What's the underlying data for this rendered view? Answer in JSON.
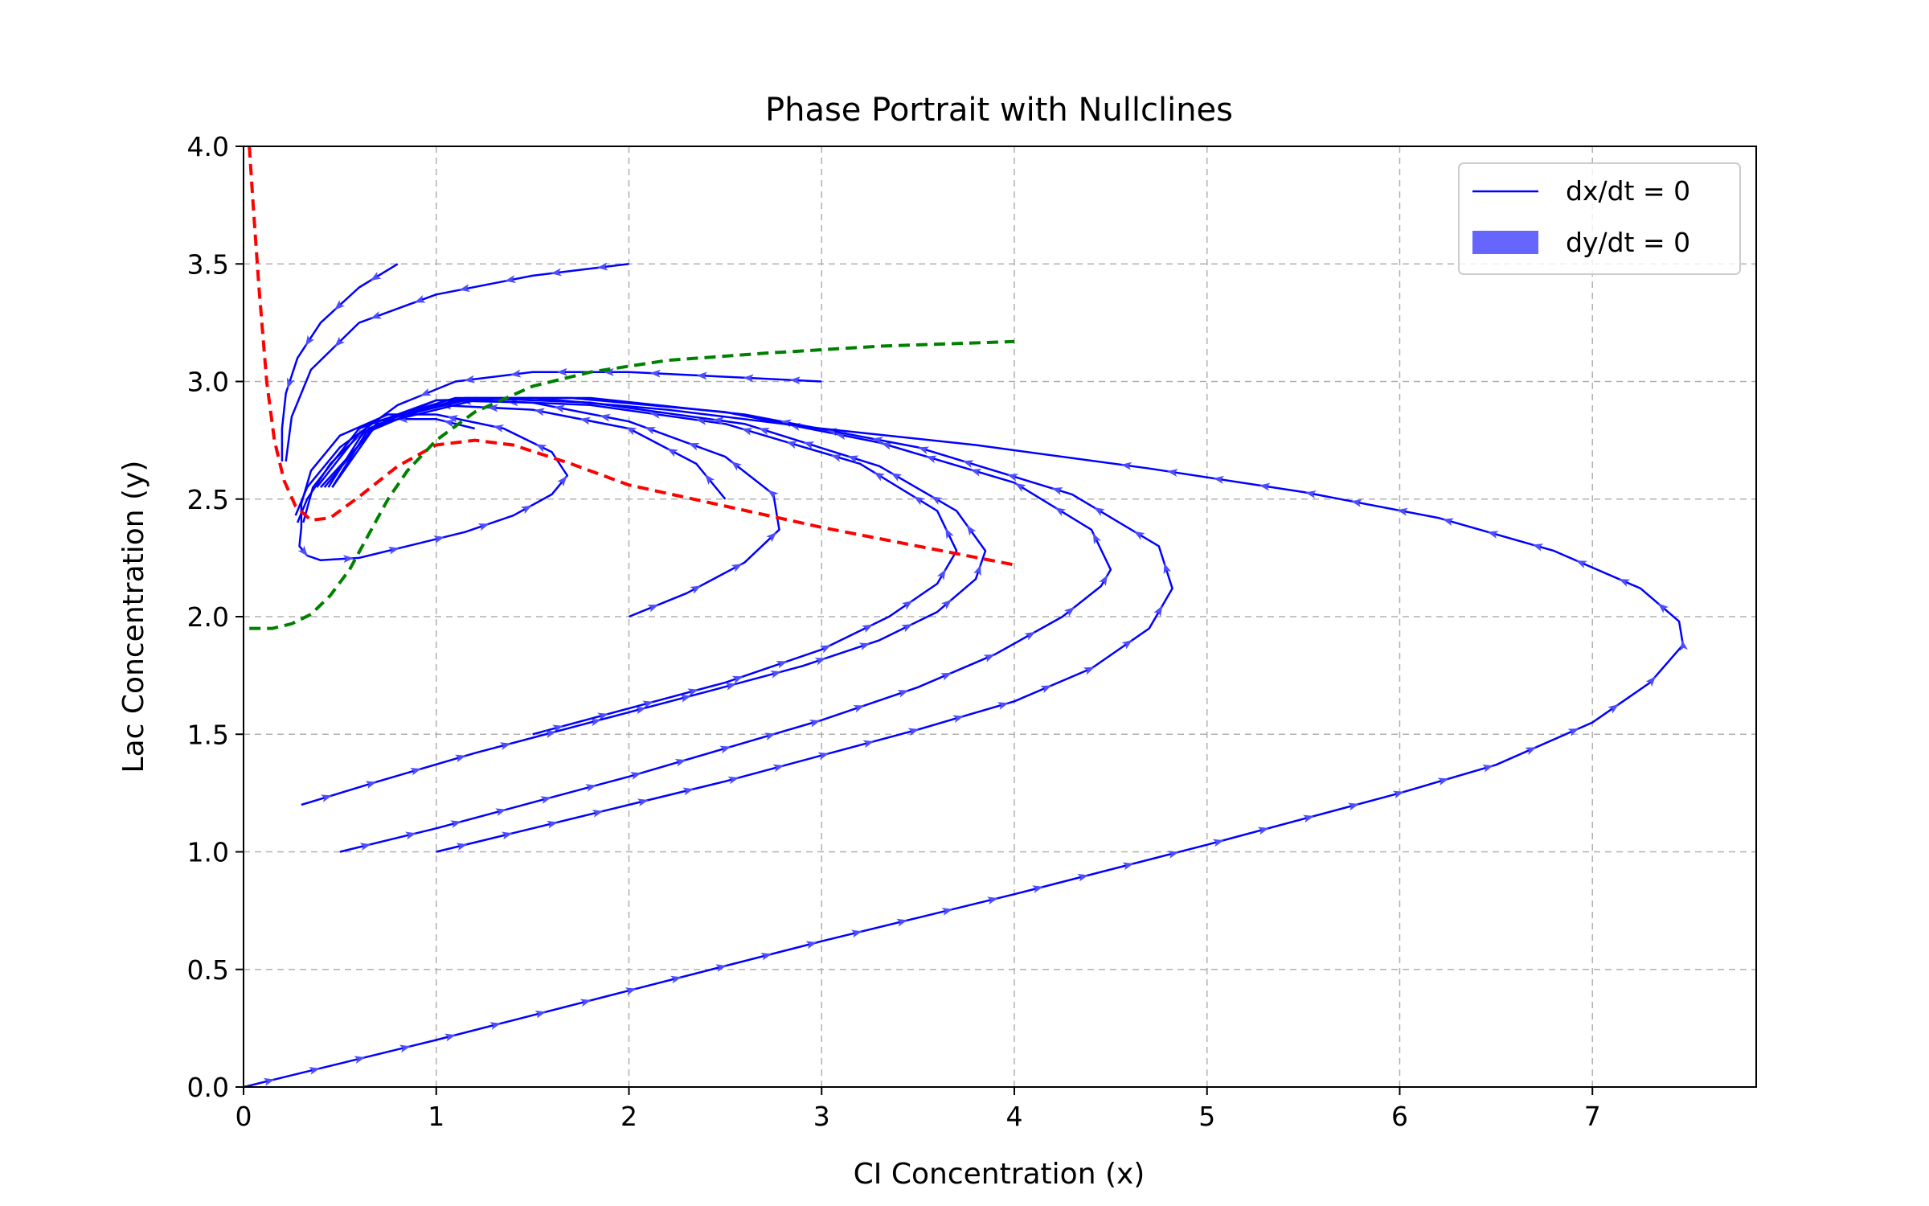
{
  "chart_data": {
    "type": "line",
    "title": "Phase Portrait with Nullclines",
    "xlabel": "CI Concentration (x)",
    "ylabel": "Lac Concentration (y)",
    "xlim": [
      0,
      7.85
    ],
    "ylim": [
      0,
      4.0
    ],
    "xticks": [
      0,
      1,
      2,
      3,
      4,
      5,
      6,
      7
    ],
    "yticks": [
      0.0,
      0.5,
      1.0,
      1.5,
      2.0,
      2.5,
      3.0,
      3.5,
      4.0
    ],
    "xtick_labels": [
      "0",
      "1",
      "2",
      "3",
      "4",
      "5",
      "6",
      "7"
    ],
    "ytick_labels": [
      "0.0",
      "0.5",
      "1.0",
      "1.5",
      "2.0",
      "2.5",
      "3.0",
      "3.5",
      "4.0"
    ],
    "grid": true,
    "legend": {
      "placement": "top-right",
      "entries": [
        {
          "label": "dx/dt = 0",
          "kind": "line",
          "color": "#0000ff"
        },
        {
          "label": "dy/dt = 0",
          "kind": "patch",
          "color": "#6666ff"
        }
      ]
    },
    "colors": {
      "trajectory": "#0000ff",
      "nullcline_red": "#ff0000",
      "nullcline_green": "#008000",
      "grid": "#b0b0b0"
    },
    "nullclines": [
      {
        "color": "#ff0000",
        "points": [
          [
            0.03,
            4.0
          ],
          [
            0.05,
            3.75
          ],
          [
            0.08,
            3.4
          ],
          [
            0.12,
            3.0
          ],
          [
            0.16,
            2.75
          ],
          [
            0.21,
            2.58
          ],
          [
            0.27,
            2.47
          ],
          [
            0.35,
            2.41
          ],
          [
            0.45,
            2.42
          ],
          [
            0.6,
            2.51
          ],
          [
            0.8,
            2.64
          ],
          [
            1.0,
            2.73
          ],
          [
            1.2,
            2.75
          ],
          [
            1.4,
            2.73
          ],
          [
            1.7,
            2.65
          ],
          [
            2.0,
            2.56
          ],
          [
            2.5,
            2.47
          ],
          [
            3.0,
            2.38
          ],
          [
            3.5,
            2.3
          ],
          [
            4.0,
            2.22
          ]
        ]
      },
      {
        "color": "#008000",
        "points": [
          [
            0.03,
            1.95
          ],
          [
            0.15,
            1.95
          ],
          [
            0.25,
            1.97
          ],
          [
            0.35,
            2.01
          ],
          [
            0.45,
            2.09
          ],
          [
            0.55,
            2.2
          ],
          [
            0.65,
            2.35
          ],
          [
            0.75,
            2.5
          ],
          [
            0.85,
            2.62
          ],
          [
            1.0,
            2.75
          ],
          [
            1.2,
            2.87
          ],
          [
            1.5,
            2.98
          ],
          [
            1.8,
            3.04
          ],
          [
            2.2,
            3.09
          ],
          [
            2.7,
            3.12
          ],
          [
            3.3,
            3.15
          ],
          [
            4.0,
            3.17
          ]
        ]
      }
    ],
    "series": [
      {
        "points": [
          [
            0.8,
            3.5
          ],
          [
            0.6,
            3.4
          ],
          [
            0.4,
            3.25
          ],
          [
            0.28,
            3.1
          ],
          [
            0.22,
            2.95
          ],
          [
            0.2,
            2.8
          ],
          [
            0.2,
            2.66
          ]
        ]
      },
      {
        "points": [
          [
            2.0,
            3.5
          ],
          [
            1.5,
            3.45
          ],
          [
            1.0,
            3.37
          ],
          [
            0.6,
            3.25
          ],
          [
            0.35,
            3.05
          ],
          [
            0.25,
            2.85
          ],
          [
            0.22,
            2.66
          ]
        ]
      },
      {
        "points": [
          [
            3.0,
            3.0
          ],
          [
            2.5,
            3.02
          ],
          [
            2.0,
            3.04
          ],
          [
            1.5,
            3.04
          ],
          [
            1.1,
            3.0
          ],
          [
            0.8,
            2.9
          ],
          [
            0.5,
            2.72
          ],
          [
            0.33,
            2.55
          ],
          [
            0.27,
            2.43
          ]
        ]
      },
      {
        "points": [
          [
            1.2,
            2.8
          ],
          [
            1.0,
            2.84
          ],
          [
            0.8,
            2.84
          ],
          [
            0.6,
            2.77
          ],
          [
            0.45,
            2.65
          ],
          [
            0.33,
            2.5
          ],
          [
            0.28,
            2.4
          ]
        ]
      },
      {
        "points": [
          [
            0.3,
            2.38
          ],
          [
            0.29,
            2.3
          ],
          [
            0.33,
            2.26
          ],
          [
            0.4,
            2.24
          ],
          [
            0.6,
            2.25
          ],
          [
            0.85,
            2.3
          ],
          [
            1.15,
            2.36
          ],
          [
            1.4,
            2.43
          ],
          [
            1.6,
            2.52
          ],
          [
            1.68,
            2.6
          ],
          [
            1.6,
            2.7
          ],
          [
            1.35,
            2.8
          ],
          [
            1.0,
            2.86
          ],
          [
            0.75,
            2.86
          ],
          [
            0.5,
            2.77
          ],
          [
            0.35,
            2.62
          ],
          [
            0.3,
            2.48
          ],
          [
            0.3,
            2.38
          ]
        ]
      },
      {
        "points": [
          [
            2.0,
            2.0
          ],
          [
            2.3,
            2.1
          ],
          [
            2.6,
            2.23
          ],
          [
            2.78,
            2.37
          ],
          [
            2.75,
            2.52
          ],
          [
            2.5,
            2.68
          ],
          [
            2.0,
            2.83
          ],
          [
            1.5,
            2.91
          ],
          [
            1.0,
            2.92
          ],
          [
            0.6,
            2.8
          ],
          [
            0.36,
            2.55
          ],
          [
            0.31,
            2.4
          ]
        ]
      },
      {
        "points": [
          [
            2.5,
            2.5
          ],
          [
            2.35,
            2.65
          ],
          [
            2.0,
            2.8
          ],
          [
            1.5,
            2.88
          ],
          [
            1.0,
            2.9
          ],
          [
            0.6,
            2.78
          ],
          [
            0.38,
            2.55
          ]
        ]
      },
      {
        "points": [
          [
            1.5,
            1.5
          ],
          [
            2.0,
            1.61
          ],
          [
            2.5,
            1.72
          ],
          [
            3.0,
            1.86
          ],
          [
            3.35,
            2.0
          ],
          [
            3.6,
            2.14
          ],
          [
            3.7,
            2.28
          ],
          [
            3.6,
            2.45
          ],
          [
            3.2,
            2.65
          ],
          [
            2.5,
            2.82
          ],
          [
            1.8,
            2.9
          ],
          [
            1.2,
            2.92
          ],
          [
            0.7,
            2.82
          ],
          [
            0.4,
            2.55
          ]
        ]
      },
      {
        "points": [
          [
            0.3,
            1.2
          ],
          [
            0.7,
            1.3
          ],
          [
            1.2,
            1.42
          ],
          [
            1.8,
            1.55
          ],
          [
            2.4,
            1.68
          ],
          [
            2.9,
            1.79
          ],
          [
            3.3,
            1.9
          ],
          [
            3.6,
            2.02
          ],
          [
            3.8,
            2.16
          ],
          [
            3.85,
            2.28
          ],
          [
            3.7,
            2.45
          ],
          [
            3.3,
            2.64
          ],
          [
            2.6,
            2.82
          ],
          [
            1.8,
            2.91
          ],
          [
            1.2,
            2.93
          ],
          [
            0.7,
            2.83
          ],
          [
            0.42,
            2.55
          ]
        ]
      },
      {
        "points": [
          [
            0.5,
            1.0
          ],
          [
            1.0,
            1.1
          ],
          [
            1.5,
            1.21
          ],
          [
            2.0,
            1.32
          ],
          [
            2.5,
            1.44
          ],
          [
            3.0,
            1.56
          ],
          [
            3.5,
            1.7
          ],
          [
            3.9,
            1.84
          ],
          [
            4.25,
            2.0
          ],
          [
            4.45,
            2.13
          ],
          [
            4.5,
            2.2
          ],
          [
            4.4,
            2.37
          ],
          [
            4.0,
            2.57
          ],
          [
            3.3,
            2.74
          ],
          [
            2.5,
            2.87
          ],
          [
            1.7,
            2.93
          ],
          [
            1.1,
            2.93
          ],
          [
            0.65,
            2.82
          ],
          [
            0.44,
            2.55
          ]
        ]
      },
      {
        "points": [
          [
            1.0,
            1.0
          ],
          [
            1.5,
            1.1
          ],
          [
            2.0,
            1.2
          ],
          [
            2.5,
            1.3
          ],
          [
            3.0,
            1.41
          ],
          [
            3.5,
            1.52
          ],
          [
            4.0,
            1.64
          ],
          [
            4.4,
            1.78
          ],
          [
            4.7,
            1.95
          ],
          [
            4.82,
            2.12
          ],
          [
            4.75,
            2.3
          ],
          [
            4.3,
            2.52
          ],
          [
            3.5,
            2.72
          ],
          [
            2.6,
            2.86
          ],
          [
            1.8,
            2.93
          ],
          [
            1.15,
            2.93
          ],
          [
            0.7,
            2.83
          ],
          [
            0.46,
            2.55
          ]
        ]
      },
      {
        "points": [
          [
            0.0,
            0.0
          ],
          [
            0.5,
            0.1
          ],
          [
            1.0,
            0.2
          ],
          [
            2.0,
            0.41
          ],
          [
            3.0,
            0.62
          ],
          [
            4.0,
            0.82
          ],
          [
            5.0,
            1.03
          ],
          [
            6.0,
            1.25
          ],
          [
            6.5,
            1.37
          ],
          [
            7.0,
            1.55
          ],
          [
            7.3,
            1.72
          ],
          [
            7.47,
            1.88
          ],
          [
            7.45,
            1.98
          ],
          [
            7.25,
            2.12
          ],
          [
            6.8,
            2.28
          ],
          [
            6.2,
            2.42
          ],
          [
            5.5,
            2.53
          ],
          [
            4.7,
            2.63
          ],
          [
            3.8,
            2.73
          ],
          [
            3.0,
            2.8
          ],
          [
            2.2,
            2.88
          ],
          [
            1.5,
            2.93
          ],
          [
            1.0,
            2.92
          ],
          [
            0.65,
            2.8
          ],
          [
            0.46,
            2.55
          ]
        ]
      }
    ]
  }
}
